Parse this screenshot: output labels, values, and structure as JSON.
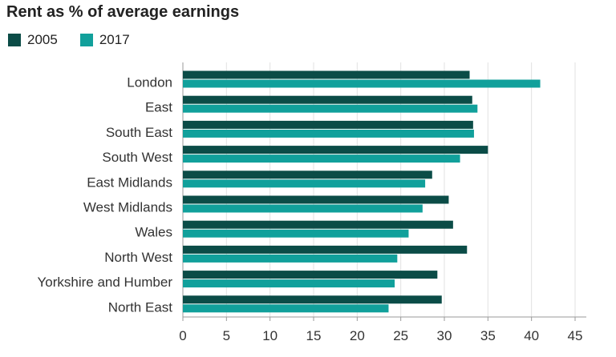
{
  "chart_data": {
    "type": "bar",
    "orientation": "horizontal",
    "title": "Rent as % of average earnings",
    "categories": [
      "London",
      "East",
      "South East",
      "South West",
      "East Midlands",
      "West Midlands",
      "Wales",
      "North West",
      "Yorkshire and Humber",
      "North East"
    ],
    "series": [
      {
        "name": "2005",
        "color": "#0b4c47",
        "values": [
          32.9,
          33.2,
          33.3,
          35.0,
          28.6,
          30.5,
          31.0,
          32.6,
          29.2,
          29.7
        ]
      },
      {
        "name": "2017",
        "color": "#11a09b",
        "values": [
          41.0,
          33.8,
          33.4,
          31.8,
          27.8,
          27.5,
          25.9,
          24.6,
          24.3,
          23.6
        ]
      }
    ],
    "xlim": [
      0,
      45
    ],
    "xticks": [
      0,
      5,
      10,
      15,
      20,
      25,
      30,
      35,
      40,
      45
    ],
    "grid": true,
    "legend_position": "top-left"
  }
}
